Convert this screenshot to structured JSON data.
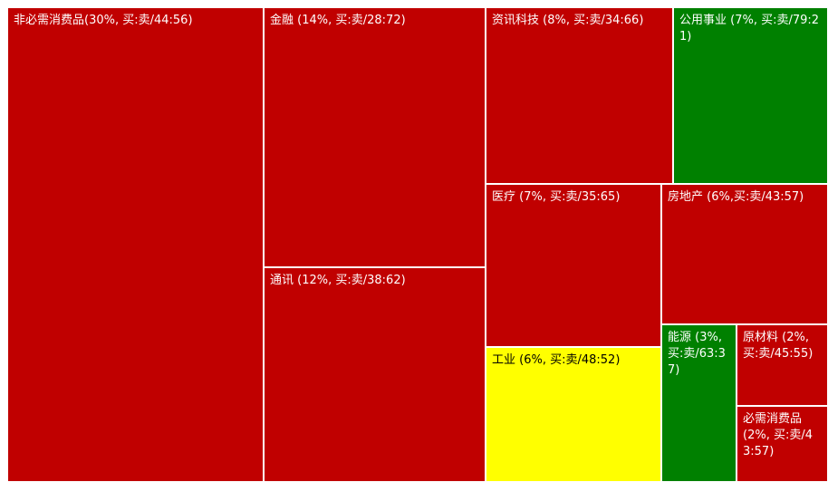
{
  "chart_data": {
    "type": "treemap",
    "legend": "none",
    "colors": {
      "red": "#c00000",
      "green": "#008000",
      "yellow": "#ffff00"
    },
    "sectors": [
      {
        "name": "非必需消费品",
        "weight_pct": 30,
        "buy": 44,
        "sell": 56,
        "color": "red",
        "label": "非必需消费品(30%, 买:卖/44:56)"
      },
      {
        "name": "金融",
        "weight_pct": 14,
        "buy": 28,
        "sell": 72,
        "color": "red",
        "label": "金融 (14%, 买:卖/28:72)"
      },
      {
        "name": "通讯",
        "weight_pct": 12,
        "buy": 38,
        "sell": 62,
        "color": "red",
        "label": "通讯 (12%, 买:卖/38:62)"
      },
      {
        "name": "资讯科技",
        "weight_pct": 8,
        "buy": 34,
        "sell": 66,
        "color": "red",
        "label": "资讯科技 (8%, 买:卖/34:66)"
      },
      {
        "name": "公用事业",
        "weight_pct": 7,
        "buy": 79,
        "sell": 21,
        "color": "green",
        "label": "公用事业 (7%, 买:卖/79:21)"
      },
      {
        "name": "医疗",
        "weight_pct": 7,
        "buy": 35,
        "sell": 65,
        "color": "red",
        "label": "医疗 (7%, 买:卖/35:65)"
      },
      {
        "name": "房地产",
        "weight_pct": 6,
        "buy": 43,
        "sell": 57,
        "color": "red",
        "label": "房地产 (6%,买:卖/43:57)"
      },
      {
        "name": "工业",
        "weight_pct": 6,
        "buy": 48,
        "sell": 52,
        "color": "yellow",
        "label": "工业 (6%, 买:卖/48:52)"
      },
      {
        "name": "能源",
        "weight_pct": 3,
        "buy": 63,
        "sell": 37,
        "color": "green",
        "label": "能源 (3%, 买:卖/63:37)"
      },
      {
        "name": "原材料",
        "weight_pct": 2,
        "buy": 45,
        "sell": 55,
        "color": "red",
        "label": "原材料 (2%, 买:卖/45:55)"
      },
      {
        "name": "必需消费品",
        "weight_pct": 2,
        "buy": 43,
        "sell": 57,
        "color": "red",
        "label": "必需消费品 (2%, 买:卖/43:57)"
      }
    ]
  }
}
